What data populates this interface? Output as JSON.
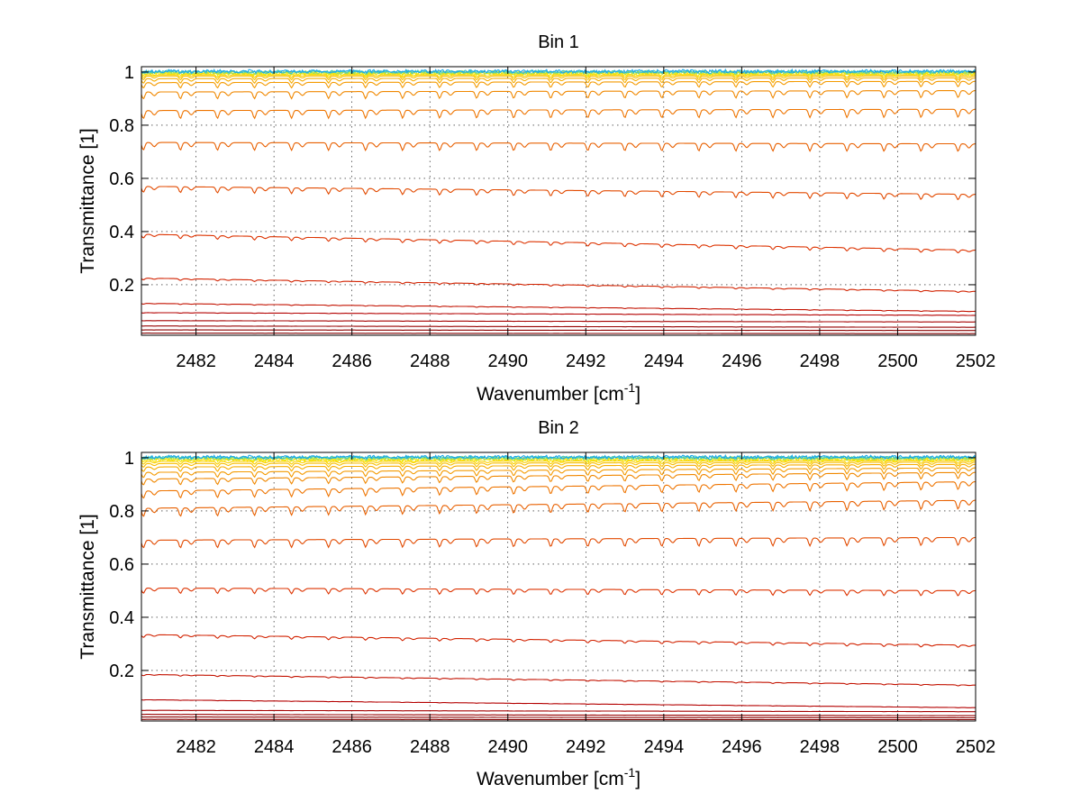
{
  "chart_data": [
    {
      "type": "line",
      "title": "Bin 1",
      "xlabel": "Wavenumber [cm",
      "xlabel_sup": "-1",
      "xlabel_end": "]",
      "ylabel": "Transmittance [1]",
      "xlim": [
        2480.6,
        2502.0
      ],
      "ylim": [
        0.01,
        1.02
      ],
      "xticks": [
        2482,
        2484,
        2486,
        2488,
        2490,
        2492,
        2494,
        2496,
        2498,
        2500,
        2502
      ],
      "xtick_labels": [
        "2482",
        "2484",
        "2486",
        "2488",
        "2490",
        "2492",
        "2494",
        "2496",
        "2498",
        "2500",
        "2502"
      ],
      "yticks": [
        0.2,
        0.4,
        0.6,
        0.8,
        1.0
      ],
      "ytick_labels": [
        "0.2",
        "0.4",
        "0.6",
        "0.8",
        "1"
      ],
      "grid": true,
      "line_spacing_cm1": 0.95,
      "line_offset_cm1": 2481.6,
      "series": [
        {
          "start": 0.018,
          "end": 0.016,
          "depth": 0.03,
          "color": "#800000"
        },
        {
          "start": 0.03,
          "end": 0.028,
          "depth": 0.03,
          "color": "#8b0000"
        },
        {
          "start": 0.045,
          "end": 0.04,
          "depth": 0.03,
          "color": "#960000"
        },
        {
          "start": 0.065,
          "end": 0.06,
          "depth": 0.03,
          "color": "#a50000"
        },
        {
          "start": 0.095,
          "end": 0.085,
          "depth": 0.04,
          "color": "#b40000"
        },
        {
          "start": 0.13,
          "end": 0.1,
          "depth": 0.06,
          "color": "#c31200"
        },
        {
          "start": 0.225,
          "end": 0.175,
          "depth": 0.08,
          "color": "#d22200"
        },
        {
          "start": 0.39,
          "end": 0.33,
          "depth": 0.1,
          "color": "#dd3300"
        },
        {
          "start": 0.57,
          "end": 0.54,
          "depth": 0.11,
          "color": "#e24a00"
        },
        {
          "start": 0.735,
          "end": 0.73,
          "depth": 0.11,
          "color": "#e86000"
        },
        {
          "start": 0.855,
          "end": 0.86,
          "depth": 0.1,
          "color": "#ee7400"
        },
        {
          "start": 0.925,
          "end": 0.93,
          "depth": 0.08,
          "color": "#f08800"
        },
        {
          "start": 0.96,
          "end": 0.965,
          "depth": 0.06,
          "color": "#f49a00"
        },
        {
          "start": 0.975,
          "end": 0.978,
          "depth": 0.05,
          "color": "#f6ac00"
        },
        {
          "start": 0.985,
          "end": 0.985,
          "depth": 0.04,
          "color": "#f8be00"
        },
        {
          "start": 0.99,
          "end": 0.99,
          "depth": 0.03,
          "color": "#fad000"
        },
        {
          "start": 0.994,
          "end": 0.994,
          "depth": 0.02,
          "color": "#fce000"
        },
        {
          "start": 0.997,
          "end": 0.997,
          "depth": 0.015,
          "color": "#e6e810"
        },
        {
          "start": 0.999,
          "end": 0.999,
          "depth": 0.01,
          "color": "#9ee060"
        },
        {
          "start": 1.001,
          "end": 1.001,
          "depth": 0.008,
          "color": "#40c8c0"
        },
        {
          "start": 1.003,
          "end": 1.003,
          "depth": 0.006,
          "color": "#1aa8e8"
        }
      ]
    },
    {
      "type": "line",
      "title": "Bin 2",
      "xlabel": "Wavenumber [cm",
      "xlabel_sup": "-1",
      "xlabel_end": "]",
      "ylabel": "Transmittance [1]",
      "xlim": [
        2480.6,
        2502.0
      ],
      "ylim": [
        0.01,
        1.02
      ],
      "xticks": [
        2482,
        2484,
        2486,
        2488,
        2490,
        2492,
        2494,
        2496,
        2498,
        2500,
        2502
      ],
      "xtick_labels": [
        "2482",
        "2484",
        "2486",
        "2488",
        "2490",
        "2492",
        "2494",
        "2496",
        "2498",
        "2500",
        "2502"
      ],
      "yticks": [
        0.2,
        0.4,
        0.6,
        0.8,
        1.0
      ],
      "ytick_labels": [
        "0.2",
        "0.4",
        "0.6",
        "0.8",
        "1"
      ],
      "grid": true,
      "line_spacing_cm1": 0.95,
      "line_offset_cm1": 2481.6,
      "series": [
        {
          "start": 0.016,
          "end": 0.015,
          "depth": 0.03,
          "color": "#800000"
        },
        {
          "start": 0.025,
          "end": 0.022,
          "depth": 0.03,
          "color": "#8b0000"
        },
        {
          "start": 0.035,
          "end": 0.03,
          "depth": 0.03,
          "color": "#960000"
        },
        {
          "start": 0.05,
          "end": 0.045,
          "depth": 0.03,
          "color": "#a50000"
        },
        {
          "start": 0.09,
          "end": 0.06,
          "depth": 0.04,
          "color": "#b40000"
        },
        {
          "start": 0.185,
          "end": 0.145,
          "depth": 0.07,
          "color": "#c31200"
        },
        {
          "start": 0.335,
          "end": 0.295,
          "depth": 0.09,
          "color": "#d22200"
        },
        {
          "start": 0.51,
          "end": 0.5,
          "depth": 0.11,
          "color": "#dd3300"
        },
        {
          "start": 0.69,
          "end": 0.7,
          "depth": 0.12,
          "color": "#e24a00"
        },
        {
          "start": 0.81,
          "end": 0.84,
          "depth": 0.11,
          "color": "#e86000"
        },
        {
          "start": 0.875,
          "end": 0.91,
          "depth": 0.09,
          "color": "#ee7400"
        },
        {
          "start": 0.92,
          "end": 0.945,
          "depth": 0.07,
          "color": "#f08800"
        },
        {
          "start": 0.945,
          "end": 0.962,
          "depth": 0.06,
          "color": "#f49a00"
        },
        {
          "start": 0.965,
          "end": 0.975,
          "depth": 0.05,
          "color": "#f6ac00"
        },
        {
          "start": 0.978,
          "end": 0.983,
          "depth": 0.04,
          "color": "#f8be00"
        },
        {
          "start": 0.986,
          "end": 0.989,
          "depth": 0.03,
          "color": "#fad000"
        },
        {
          "start": 0.992,
          "end": 0.994,
          "depth": 0.02,
          "color": "#fce000"
        },
        {
          "start": 0.996,
          "end": 0.997,
          "depth": 0.015,
          "color": "#e6e810"
        },
        {
          "start": 0.999,
          "end": 0.999,
          "depth": 0.01,
          "color": "#9ee060"
        },
        {
          "start": 1.001,
          "end": 1.001,
          "depth": 0.008,
          "color": "#40c8c0"
        },
        {
          "start": 1.003,
          "end": 1.003,
          "depth": 0.006,
          "color": "#1aa8e8"
        }
      ]
    }
  ]
}
